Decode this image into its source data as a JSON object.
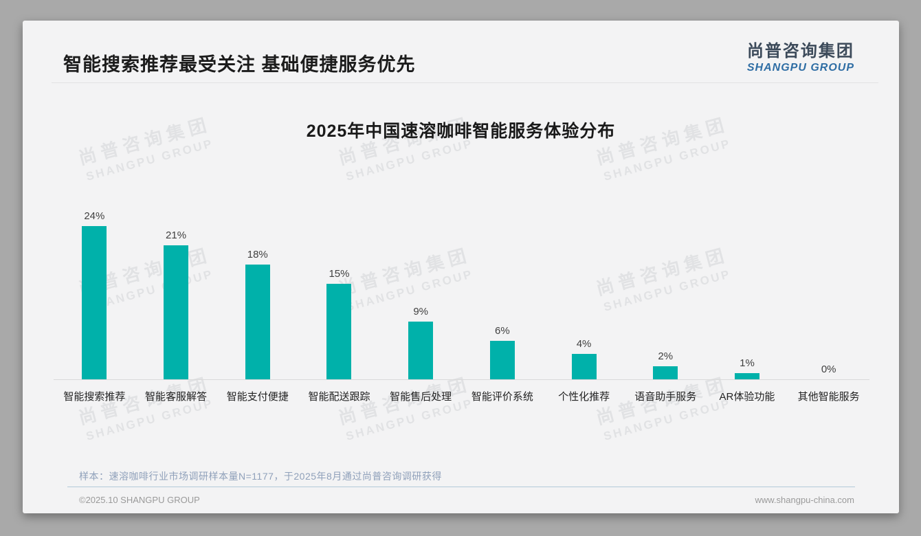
{
  "page": {
    "background": "#a9a9a9",
    "card_background": "#f3f3f4"
  },
  "header": {
    "title": "智能搜索推荐最受关注 基础便捷服务优先",
    "logo_cn": "尚普咨询集团",
    "logo_en": "SHANGPU GROUP"
  },
  "watermark": {
    "cn": "尚普咨询集团",
    "en": "SHANGPU GROUP"
  },
  "chart_data": {
    "type": "bar",
    "title": "2025年中国速溶咖啡智能服务体验分布",
    "categories": [
      "智能搜索推荐",
      "智能客服解答",
      "智能支付便捷",
      "智能配送跟踪",
      "智能售后处理",
      "智能评价系统",
      "个性化推荐",
      "语音助手服务",
      "AR体验功能",
      "其他智能服务"
    ],
    "values": [
      24,
      21,
      18,
      15,
      9,
      6,
      4,
      2,
      1,
      0
    ],
    "value_suffix": "%",
    "bar_color": "#00b1aa",
    "xlabel": "",
    "ylabel": "",
    "ylim": [
      0,
      26
    ],
    "grid": false,
    "legend": false,
    "value_labels_shown": true
  },
  "footnote": "样本：速溶咖啡行业市场调研样本量N=1177，于2025年8月通过尚普咨询调研获得",
  "footer": {
    "left": "©2025.10 SHANGPU GROUP",
    "right": "www.shangpu-china.com"
  }
}
